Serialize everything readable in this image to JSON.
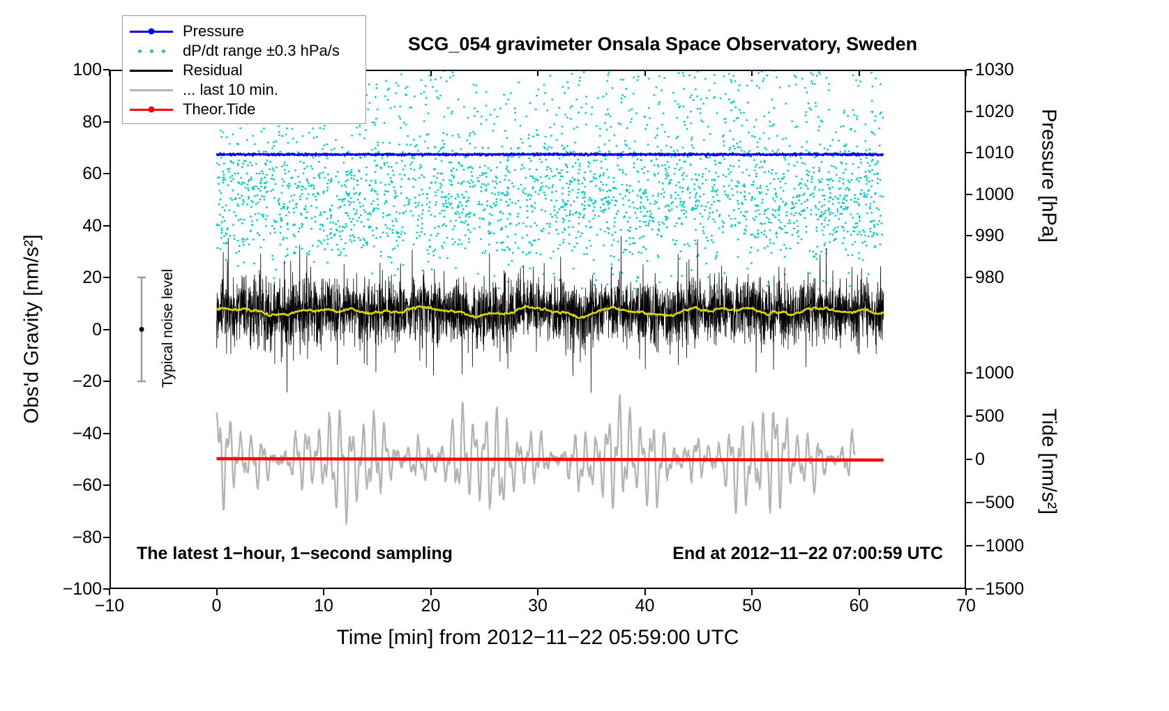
{
  "chart_data": {
    "type": "line",
    "title": "SCG_054 gravimeter Onsala Space Observatory, Sweden",
    "xlabel": "Time [min] from 2012−11−22 05:59:00 UTC",
    "ylabel_left": "Obs'd Gravity [nm/s²]",
    "ylabel_pressure": "Pressure [hPa]",
    "ylabel_tide": "Tide [nm/s²]",
    "annotations": {
      "sampling": "The latest 1−hour, 1−second sampling",
      "end_time": "End at 2012−11−22 07:00:59 UTC"
    },
    "noise_bar": {
      "label": "Typical noise level",
      "x": -7,
      "center": 0,
      "half_range": 20,
      "color": "#9b9b9b",
      "dot_color": "#000000"
    },
    "legend": [
      {
        "label": "Pressure",
        "color": "#0000ee",
        "marker": "line-dot"
      },
      {
        "label": "dP/dt range ±0.3 hPa/s",
        "color": "#00cccc",
        "marker": "dots"
      },
      {
        "label": "Residual",
        "color": "#000000",
        "marker": "line"
      },
      {
        "label": "... last 10 min.",
        "color": "#b3b3b3",
        "marker": "line"
      },
      {
        "label": "Theor.Tide",
        "color": "#ff0000",
        "marker": "line-dot"
      }
    ],
    "axes": {
      "x": {
        "min": -10,
        "max": 70,
        "label_units": "min",
        "ticks": [
          {
            "v": -10,
            "label": "−10"
          },
          {
            "v": 0,
            "label": "0"
          },
          {
            "v": 10,
            "label": "10"
          },
          {
            "v": 20,
            "label": "20"
          },
          {
            "v": 30,
            "label": "30"
          },
          {
            "v": 40,
            "label": "40"
          },
          {
            "v": 50,
            "label": "50"
          },
          {
            "v": 60,
            "label": "60"
          },
          {
            "v": 70,
            "label": "70"
          }
        ]
      },
      "gravity": {
        "min": -100,
        "max": 100,
        "ticks": [
          {
            "v": 100,
            "label": "100"
          },
          {
            "v": 80,
            "label": "80"
          },
          {
            "v": 60,
            "label": "60"
          },
          {
            "v": 40,
            "label": "40"
          },
          {
            "v": 20,
            "label": "20"
          },
          {
            "v": 0,
            "label": "0"
          },
          {
            "v": -20,
            "label": "−20"
          },
          {
            "v": -40,
            "label": "−40"
          },
          {
            "v": -60,
            "label": "−60"
          },
          {
            "v": -80,
            "label": "−80"
          },
          {
            "v": -100,
            "label": "−100"
          }
        ]
      },
      "pressure": {
        "max": 1030,
        "min": 980,
        "frac_top": 0.0,
        "frac_bottom": 0.4,
        "ticks": [
          {
            "v": 1030,
            "label": "1030"
          },
          {
            "v": 1020,
            "label": "1020"
          },
          {
            "v": 1010,
            "label": "1010"
          },
          {
            "v": 1000,
            "label": "1000"
          },
          {
            "v": 990,
            "label": "990"
          },
          {
            "v": 980,
            "label": "980"
          }
        ]
      },
      "tide": {
        "max": 1000,
        "min": -1500,
        "frac_top": 0.584,
        "frac_bottom": 1.0,
        "ticks": [
          {
            "v": 1000,
            "label": "1000"
          },
          {
            "v": 500,
            "label": "500"
          },
          {
            "v": 0,
            "label": "0"
          },
          {
            "v": -500,
            "label": "−500"
          },
          {
            "v": -1000,
            "label": "−1000"
          },
          {
            "v": -1500,
            "label": "−1500"
          }
        ]
      }
    },
    "series": [
      {
        "name": "dP/dt range ±0.3 hPa/s",
        "type": "scatter",
        "axis": "gravity",
        "color": "#00cccc",
        "x_start": 0,
        "x_end": 62.3,
        "count": 3000,
        "cluster_center": 50,
        "cluster_sd": 11,
        "cluster_fraction": 0.55,
        "uniform_range": [
          28,
          100
        ],
        "low_fraction": 0.02,
        "low_range": [
          14,
          28
        ],
        "dot_radius": 1.4
      },
      {
        "name": "Pressure",
        "type": "flat-noisy-line",
        "axis": "pressure",
        "color": "#0000ee",
        "x_start": 0,
        "x_end": 62.3,
        "level_hPa": 1009.6,
        "noise_sd": 0.13,
        "points": 2200,
        "line_width": 2.4
      },
      {
        "name": "Residual",
        "type": "noisy-line",
        "axis": "gravity",
        "color": "#000000",
        "x_start": 0,
        "x_end": 62.3,
        "baseline": 7,
        "noise_sd": 6,
        "spike_prob": 0.03,
        "spike_min": 8,
        "spike_max": 19,
        "points": 3600,
        "line_width": 0.8
      },
      {
        "name": "Residual (filtered)",
        "type": "smoothed-residual",
        "axis": "gravity",
        "color": "#d8d800",
        "window": 41,
        "line_width": 2.6
      },
      {
        "name": "... last 10 min.",
        "type": "oscillation",
        "axis": "tide",
        "color": "#b3b3b3",
        "x_start": 0,
        "x_end": 59.6,
        "points": 2400,
        "line_width": 2.3,
        "jitter_sd": 22,
        "components": [
          {
            "amp": 320,
            "period": 1.04,
            "phase": 0.7
          },
          {
            "amp": 180,
            "period": 0.46,
            "phase": 2.1
          },
          {
            "amp": 60,
            "period": 7.3,
            "phase": 0.3
          }
        ],
        "modulation": {
          "base": 0.75,
          "a1": 0.45,
          "p1": 13,
          "ph1": 2.0,
          "a2": 0.25,
          "p2": 3.7,
          "ph2": 0.9
        }
      },
      {
        "name": "Theor.Tide",
        "type": "straight-line",
        "axis": "tide",
        "color": "#ff0000",
        "x_start": 0,
        "x_end": 62.3,
        "y_start": 8,
        "y_end": -8,
        "line_width": 4.5
      }
    ]
  }
}
